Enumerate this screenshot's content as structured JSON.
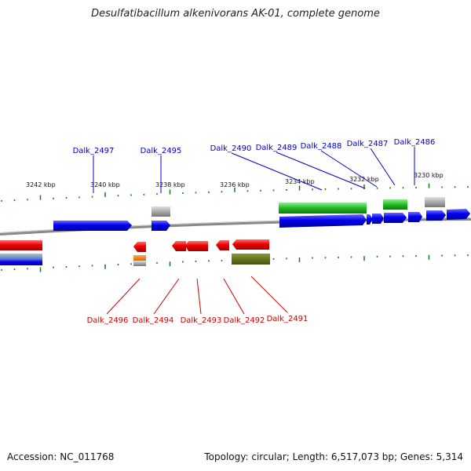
{
  "title": "Desulfatibacillum alkenivorans AK-01, complete genome",
  "footer": {
    "accession": "Accession: NC_011768",
    "summary": "Topology: circular; Length: 6,517,073 bp; Genes: 5,314"
  },
  "tick_labels": [
    "3242 kbp",
    "3240 kbp",
    "3238 kbp",
    "3236 kbp",
    "3234 kbp",
    "3232 kbp",
    "3230 kbp"
  ],
  "forward_genes": [
    "Dalk_2497",
    "Dalk_2495",
    "Dalk_2490",
    "Dalk_2489",
    "Dalk_2488",
    "Dalk_2487",
    "Dalk_2486"
  ],
  "reverse_genes": [
    "Dalk_2496",
    "Dalk_2494",
    "Dalk_2493",
    "Dalk_2492",
    "Dalk_2491"
  ],
  "colors": {
    "forward_cds": "#0000ee",
    "reverse_cds": "#ee0000",
    "rna_gene": "#22bb22",
    "pseudo": "#aaaaaa",
    "orange_feature": "#ee7700",
    "olive_feature": "#667722",
    "tick": "#1a7a1a",
    "backbone": "#888888"
  }
}
